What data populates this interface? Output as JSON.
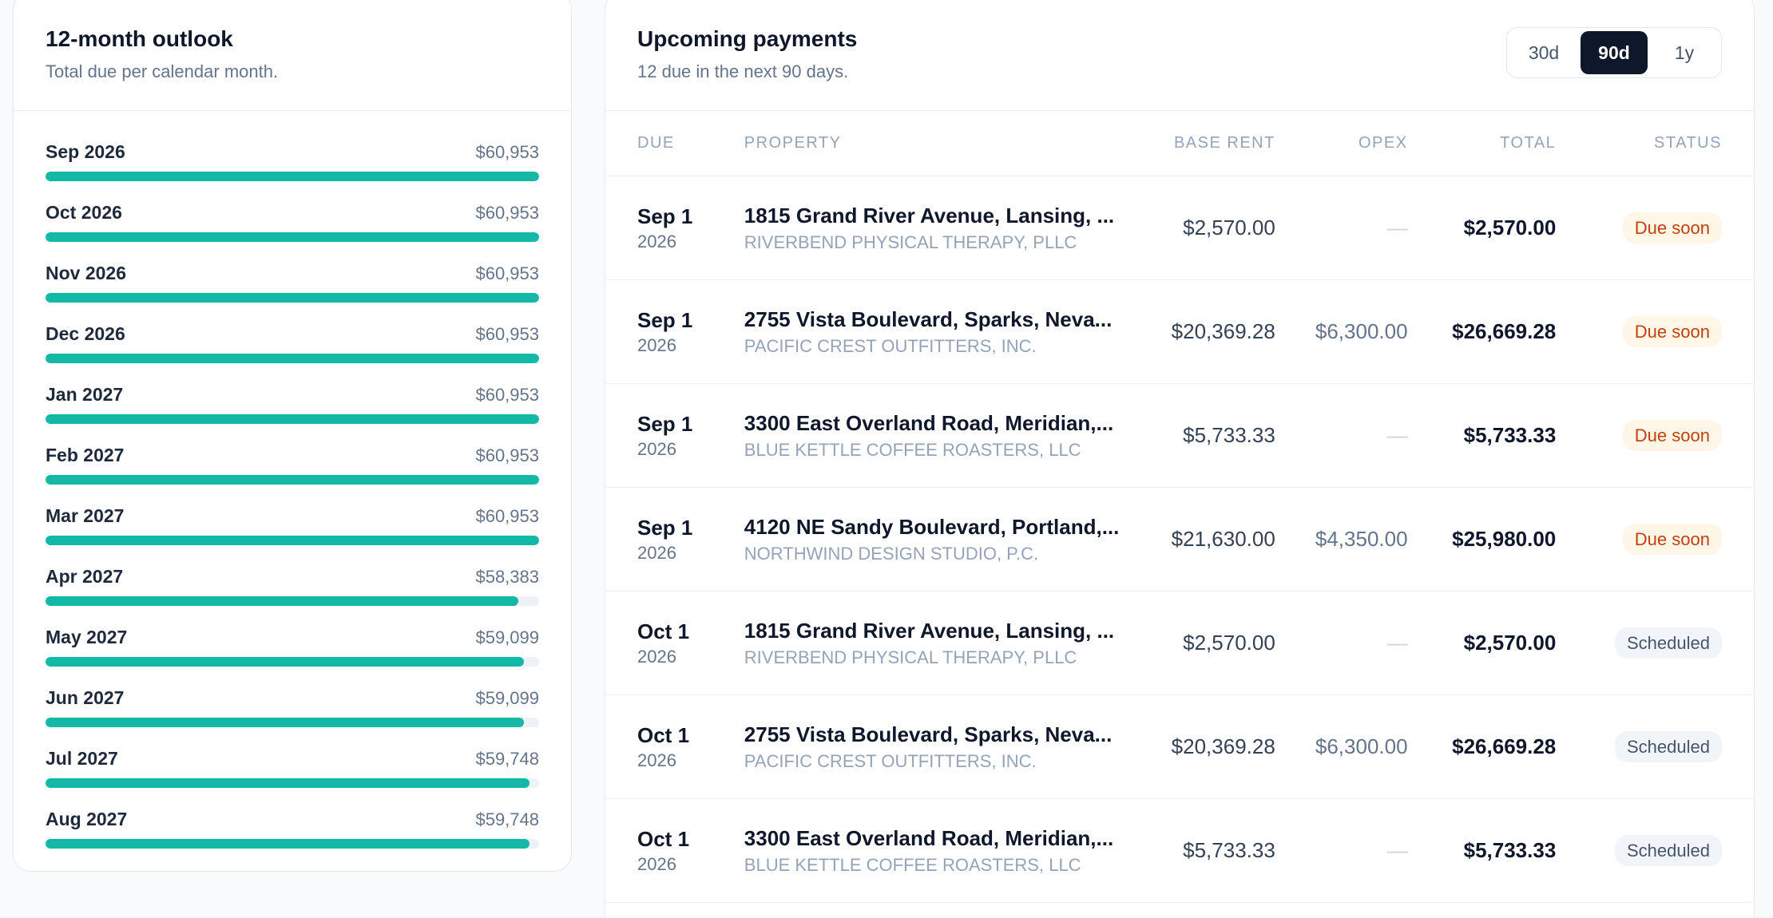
{
  "outlook": {
    "title": "12-month outlook",
    "subtitle": "Total due per calendar month.",
    "bar_color": "#14b8a6",
    "months": [
      {
        "label": "Sep 2026",
        "amount": "$60,953",
        "value": 60953
      },
      {
        "label": "Oct 2026",
        "amount": "$60,953",
        "value": 60953
      },
      {
        "label": "Nov 2026",
        "amount": "$60,953",
        "value": 60953
      },
      {
        "label": "Dec 2026",
        "amount": "$60,953",
        "value": 60953
      },
      {
        "label": "Jan 2027",
        "amount": "$60,953",
        "value": 60953
      },
      {
        "label": "Feb 2027",
        "amount": "$60,953",
        "value": 60953
      },
      {
        "label": "Mar 2027",
        "amount": "$60,953",
        "value": 60953
      },
      {
        "label": "Apr 2027",
        "amount": "$58,383",
        "value": 58383
      },
      {
        "label": "May 2027",
        "amount": "$59,099",
        "value": 59099
      },
      {
        "label": "Jun 2027",
        "amount": "$59,099",
        "value": 59099
      },
      {
        "label": "Jul 2027",
        "amount": "$59,748",
        "value": 59748
      },
      {
        "label": "Aug 2027",
        "amount": "$59,748",
        "value": 59748
      }
    ]
  },
  "payments": {
    "title": "Upcoming payments",
    "subtitle": "12 due in the next 90 days.",
    "ranges": [
      {
        "label": "30d",
        "active": false
      },
      {
        "label": "90d",
        "active": true
      },
      {
        "label": "1y",
        "active": false
      }
    ],
    "columns": {
      "due": "DUE",
      "property": "PROPERTY",
      "base_rent": "BASE RENT",
      "opex": "OPEX",
      "total": "TOTAL",
      "status": "STATUS"
    },
    "rows": [
      {
        "due": "Sep 1",
        "year": "2026",
        "address": "1815 Grand River Avenue, Lansing, ...",
        "tenant": "RIVERBEND PHYSICAL THERAPY, PLLC",
        "base_rent": "$2,570.00",
        "opex": "—",
        "total": "$2,570.00",
        "status": "Due soon",
        "status_kind": "due"
      },
      {
        "due": "Sep 1",
        "year": "2026",
        "address": "2755 Vista Boulevard, Sparks, Neva...",
        "tenant": "PACIFIC CREST OUTFITTERS, INC.",
        "base_rent": "$20,369.28",
        "opex": "$6,300.00",
        "total": "$26,669.28",
        "status": "Due soon",
        "status_kind": "due"
      },
      {
        "due": "Sep 1",
        "year": "2026",
        "address": "3300 East Overland Road, Meridian,...",
        "tenant": "BLUE KETTLE COFFEE ROASTERS, LLC",
        "base_rent": "$5,733.33",
        "opex": "—",
        "total": "$5,733.33",
        "status": "Due soon",
        "status_kind": "due"
      },
      {
        "due": "Sep 1",
        "year": "2026",
        "address": "4120 NE Sandy Boulevard, Portland,...",
        "tenant": "NORTHWIND DESIGN STUDIO, P.C.",
        "base_rent": "$21,630.00",
        "opex": "$4,350.00",
        "total": "$25,980.00",
        "status": "Due soon",
        "status_kind": "due"
      },
      {
        "due": "Oct 1",
        "year": "2026",
        "address": "1815 Grand River Avenue, Lansing, ...",
        "tenant": "RIVERBEND PHYSICAL THERAPY, PLLC",
        "base_rent": "$2,570.00",
        "opex": "—",
        "total": "$2,570.00",
        "status": "Scheduled",
        "status_kind": "scheduled"
      },
      {
        "due": "Oct 1",
        "year": "2026",
        "address": "2755 Vista Boulevard, Sparks, Neva...",
        "tenant": "PACIFIC CREST OUTFITTERS, INC.",
        "base_rent": "$20,369.28",
        "opex": "$6,300.00",
        "total": "$26,669.28",
        "status": "Scheduled",
        "status_kind": "scheduled"
      },
      {
        "due": "Oct 1",
        "year": "2026",
        "address": "3300 East Overland Road, Meridian,...",
        "tenant": "BLUE KETTLE COFFEE ROASTERS, LLC",
        "base_rent": "$5,733.33",
        "opex": "—",
        "total": "$5,733.33",
        "status": "Scheduled",
        "status_kind": "scheduled"
      }
    ]
  }
}
